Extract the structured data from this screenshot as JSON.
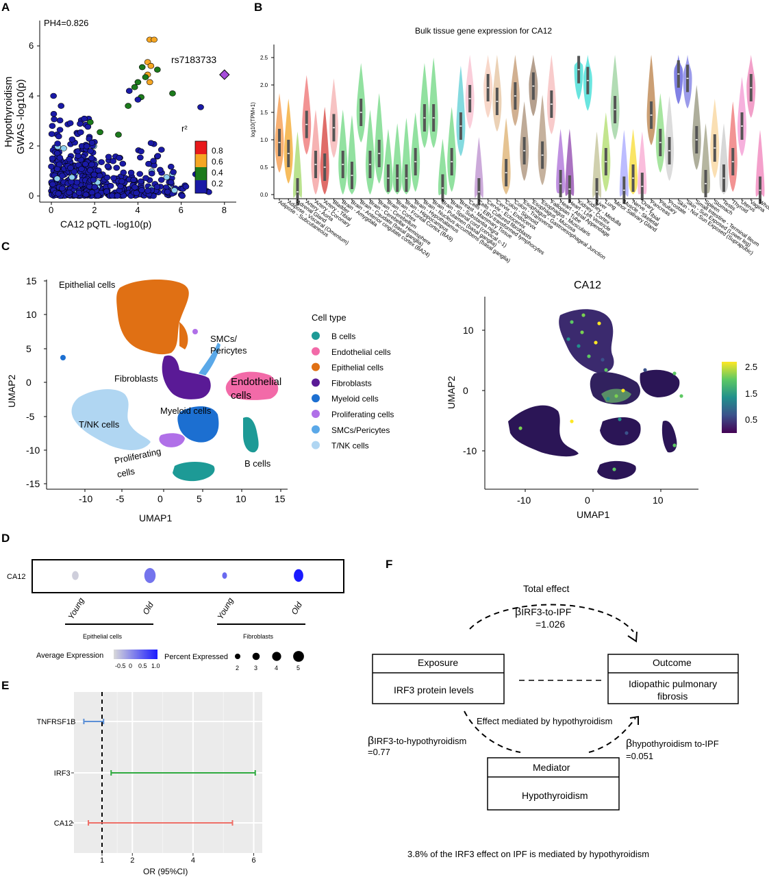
{
  "panels": {
    "a": "A",
    "b": "B",
    "c": "C",
    "d": "D",
    "e": "E",
    "f": "F"
  },
  "chart_data": [
    {
      "id": "A",
      "type": "scatter",
      "annotation": "PH4=0.826",
      "lead_snp": "rs7183733",
      "xlabel": "CA12 pQTL -log10(p)",
      "ylabel_line1": "Hypothyroidism",
      "ylabel_line2": "GWAS -log10(p)",
      "xlim": [
        0,
        8.5
      ],
      "ylim": [
        0,
        6.5
      ],
      "xticks": [
        0,
        2,
        4,
        6,
        8
      ],
      "yticks": [
        0,
        2,
        4,
        6
      ],
      "legend_title": "r²",
      "legend_levels": [
        "0.8",
        "0.6",
        "0.4",
        "0.2"
      ],
      "legend_colors": [
        "#e8191b",
        "#f5a623",
        "#1c7a1c",
        "#1a1aa6",
        "#8fd0ef"
      ],
      "lead_point": {
        "x": 8.0,
        "y": 4.85,
        "color": "#a64dd9"
      },
      "points_high": [
        {
          "x": 4.55,
          "y": 6.25,
          "r2": 0.7
        },
        {
          "x": 4.75,
          "y": 6.25,
          "r2": 0.7
        },
        {
          "x": 4.45,
          "y": 5.35,
          "r2": 0.7
        },
        {
          "x": 4.6,
          "y": 5.2,
          "r2": 0.7
        },
        {
          "x": 4.2,
          "y": 5.15,
          "r2": 0.5
        },
        {
          "x": 4.9,
          "y": 5.05,
          "r2": 0.5
        },
        {
          "x": 4.45,
          "y": 4.85,
          "r2": 0.7
        },
        {
          "x": 4.55,
          "y": 4.55,
          "r2": 0.7
        },
        {
          "x": 4.35,
          "y": 4.75,
          "r2": 0.5
        },
        {
          "x": 4.0,
          "y": 4.55,
          "r2": 0.5
        },
        {
          "x": 3.85,
          "y": 4.35,
          "r2": 0.5
        },
        {
          "x": 5.6,
          "y": 4.1,
          "r2": 0.5
        },
        {
          "x": 4.15,
          "y": 3.95,
          "r2": 0.5
        },
        {
          "x": 3.55,
          "y": 3.6,
          "r2": 0.5
        },
        {
          "x": 3.6,
          "y": 4.2,
          "r2": 0.1
        },
        {
          "x": 4.0,
          "y": 3.85,
          "r2": 0.1
        },
        {
          "x": 6.9,
          "y": 3.55,
          "r2": 0.1
        },
        {
          "x": 0.1,
          "y": 4.0,
          "r2": 0.1
        },
        {
          "x": 0.45,
          "y": 3.6,
          "r2": 0.1
        },
        {
          "x": 1.8,
          "y": 2.95,
          "r2": 0.5
        },
        {
          "x": 2.25,
          "y": 2.55,
          "r2": 0.5
        },
        {
          "x": 3.1,
          "y": 2.45,
          "r2": 0.5
        }
      ]
    },
    {
      "id": "B",
      "type": "violin",
      "title": "Bulk tissue gene expression for CA12",
      "ylabel": "log10(TPM+1)",
      "ylim": [
        0,
        2.6
      ],
      "yticks": [
        "0.0",
        "0.5",
        "1.0",
        "1.5",
        "2.0",
        "2.5"
      ],
      "categories": [
        "Adipose - Subcutaneous",
        "Adipose - Visceral (Omentum)",
        "Adrenal Gland",
        "Artery - Aorta",
        "Artery - Coronary",
        "Artery - Tibial",
        "Bladder",
        "Brain - Amygdala",
        "Brain - Anterior cingulate cortex (BA24)",
        "Brain - Caudate (basal ganglia)",
        "Brain - Cerebellar Hemisphere",
        "Brain - Cerebellum",
        "Brain - Cortex",
        "Brain - Frontal Cortex (BA9)",
        "Brain - Hippocampus",
        "Brain - Hypothalamus",
        "Brain - Nucleus accumbens (basal ganglia)",
        "Brain - Putamen (basal ganglia)",
        "Brain - Spinal cord (cervical c-1)",
        "Brain - Substantia nigra",
        "Breast - Mammary Tissue",
        "Cells - EBV-transformed lymphocytes",
        "Cells - Cultured fibroblasts",
        "Cervix - Ectocervix",
        "Cervix - Endocervix",
        "Colon - Sigmoid",
        "Colon - Transverse",
        "Esophagus - Gastroesophageal Junction",
        "Esophagus - Mucosa",
        "Esophagus - Muscularis",
        "Fallopian Tube",
        "Heart - Atrial Appendage",
        "Heart - Left Ventricle",
        "Kidney - Cortex",
        "Kidney - Medulla",
        "Liver",
        "Lung",
        "Minor Salivary Gland",
        "Muscle - Skeletal",
        "Nerve - Tibial",
        "Ovary",
        "Pancreas",
        "Pituitary",
        "Prostate",
        "Skin - Not Sun Exposed (Suprapubic)",
        "Skin - Sun Exposed (Lower leg)",
        "Small Intestine - Terminal Ileum",
        "Spleen",
        "Stomach",
        "Testis",
        "Thyroid",
        "Uterus",
        "Vagina",
        "Whole Blood"
      ],
      "medians": [
        0.95,
        0.75,
        0.05,
        1.28,
        0.55,
        0.5,
        1.22,
        0.55,
        0.35,
        1.5,
        0.55,
        0.75,
        0.3,
        0.3,
        0.3,
        0.6,
        1.4,
        1.4,
        0.12,
        0.6,
        1.25,
        1.75,
        0.05,
        1.95,
        1.7,
        0.4,
        1.8,
        0.8,
        1.98,
        0.72,
        1.65,
        0.2,
        0.1,
        2.28,
        2.08,
        0.05,
        0.6,
        1.55,
        0.08,
        0.3,
        0.15,
        1.45,
        0.95,
        0.8,
        2.2,
        2.12,
        1.0,
        0.2,
        0.85,
        0.3,
        0.6,
        1.25,
        1.95,
        0.08
      ],
      "colors": [
        "#f7a35c",
        "#f5b041",
        "#aedd7a",
        "#f08080",
        "#f4a6a6",
        "#d9534f",
        "#f6b9b9",
        "#7fdc8f",
        "#7fdc8f",
        "#7fdc8f",
        "#7fdc8f",
        "#7fdc8f",
        "#7fdc8f",
        "#7fdc8f",
        "#7fdc8f",
        "#7fdc8f",
        "#7fdc8f",
        "#7fdc8f",
        "#7fdc8f",
        "#7fdc8f",
        "#6fd3d9",
        "#f9c6d3",
        "#c39bd3",
        "#f7d0c0",
        "#e8c9a8",
        "#e0b97f",
        "#c9a27e",
        "#b39b85",
        "#a88f7a",
        "#bba38c",
        "#f7c2c2",
        "#b57edc",
        "#9b59b6",
        "#4fe0d9",
        "#4fe0d9",
        "#c8c8a0",
        "#b8e07a",
        "#a5d6a7",
        "#b0b0ff",
        "#f9e04a",
        "#f9b2d6",
        "#c28e5c",
        "#98e08f",
        "#d6d6d6",
        "#6b6be0",
        "#8a8ae6",
        "#a0a08a",
        "#a9a98f",
        "#f9d9a6",
        "#d0d0d0",
        "#f08080",
        "#f4a3d7",
        "#f08fc0",
        "#f28fc2"
      ]
    },
    {
      "id": "C-left",
      "type": "scatter",
      "xlabel": "UMAP1",
      "ylabel": "UMAP2",
      "xticks": [
        "-10",
        "-5",
        "0",
        "5",
        "10",
        "15"
      ],
      "yticks": [
        "-15",
        "-10",
        "-5",
        "0",
        "5",
        "10",
        "15"
      ],
      "legend_title": "Cell type",
      "legend": [
        {
          "name": "B cells",
          "color": "#1d9a96"
        },
        {
          "name": "Endothelial cells",
          "color": "#f26aa8"
        },
        {
          "name": "Epithelial cells",
          "color": "#e07014"
        },
        {
          "name": "Fibroblasts",
          "color": "#5a1a96"
        },
        {
          "name": "Myeloid cells",
          "color": "#1c6fd1"
        },
        {
          "name": "Proliferating cells",
          "color": "#b070e8"
        },
        {
          "name": "SMCs/Pericytes",
          "color": "#5aa8e8"
        },
        {
          "name": "T/NK cells",
          "color": "#b0d6f2"
        }
      ],
      "cluster_labels": {
        "epithelial": "Epithelial cells",
        "smc1": "SMCs/",
        "smc2": "Pericytes",
        "fibro": "Fibroblasts",
        "endo1": "Endothelial",
        "endo2": "cells",
        "myeloid": "Myeloid cells",
        "tnk": "T/NK cells",
        "prolif1": "Proliferating",
        "prolif2": "cells",
        "bcells": "B cells"
      }
    },
    {
      "id": "C-right",
      "type": "scatter",
      "title": "CA12",
      "xlabel": "UMAP1",
      "ylabel": "UMAP2",
      "xticks": [
        "-10",
        "0",
        "10"
      ],
      "yticks": [
        "-10",
        "0",
        "10"
      ],
      "colorbar_ticks": [
        "2.5",
        "1.5",
        "0.5"
      ]
    },
    {
      "id": "D",
      "type": "dotplot",
      "row": "CA12",
      "groups": [
        "Young",
        "Old",
        "Young",
        "Old"
      ],
      "group_labels": [
        "Epithelial cells",
        "Fibroblasts"
      ],
      "avg_expression": [
        -0.6,
        0.2,
        0.3,
        1.0
      ],
      "pct_expressed": [
        2.5,
        5,
        1.5,
        4
      ],
      "legend_avg_title": "Average Expression",
      "legend_avg_ticks": [
        "-0.5",
        "0",
        "0.5",
        "1.0"
      ],
      "legend_pct_title": "Percent Expressed",
      "legend_pct_ticks": [
        "2",
        "3",
        "4",
        "5"
      ]
    },
    {
      "id": "E",
      "type": "forest",
      "xlabel": "OR (95%CI)",
      "xticks": [
        "1",
        "2",
        "4",
        "6"
      ],
      "rows": [
        {
          "label": "TNFRSF1B",
          "lo": 0.4,
          "hi": 1.05,
          "color": "#5b8fd6"
        },
        {
          "label": "IRF3",
          "lo": 1.3,
          "hi": 6.05,
          "color": "#2eaa3f"
        },
        {
          "label": "CA12",
          "lo": 0.55,
          "hi": 5.3,
          "color": "#ef6f67"
        }
      ]
    }
  ],
  "mediation": {
    "total_effect": "Total effect",
    "beta_total_sub": "IRF3-to-IPF",
    "beta_total_val": "=1.026",
    "exposure_head": "Exposure",
    "exposure_body": "IRF3 protein levels",
    "outcome_head": "Outcome",
    "outcome_body1": "Idiopathic pulmonary",
    "outcome_body2": "fibrosis",
    "mediated_label": "Effect mediated by hypothyroidism",
    "beta_a_sub": "IRF3-to-hypothyroidism",
    "beta_a_val": "=0.77",
    "beta_b_sub": "hypothyroidism to-IPF",
    "beta_b_val": "=0.051",
    "mediator_head": "Mediator",
    "mediator_body": "Hypothyroidism",
    "footer": "3.8% of the IRF3 effect on IPF is mediated by hypothyroidism",
    "beta_symbol": "β"
  }
}
